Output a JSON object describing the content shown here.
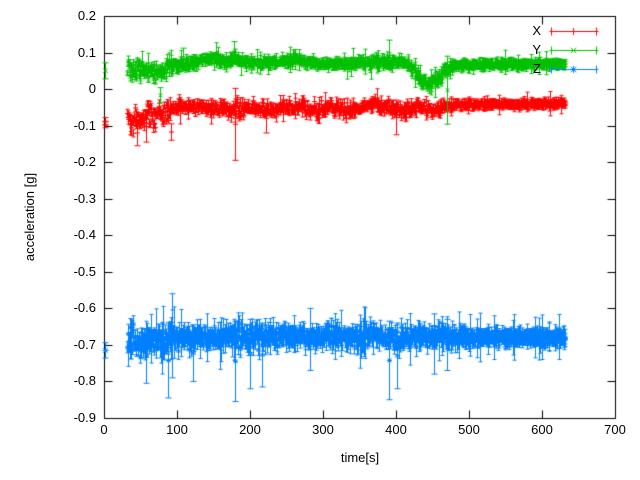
{
  "chart_data": {
    "type": "scatter",
    "style": "points-with-errorbars",
    "title": "",
    "xlabel": "time[s]",
    "ylabel": "acceleration [g]",
    "xlim": [
      0,
      700
    ],
    "ylim": [
      -0.9,
      0.2
    ],
    "xtick_values": [
      0,
      100,
      200,
      300,
      400,
      500,
      600,
      700
    ],
    "xticks": [
      "0",
      "100",
      "200",
      "300",
      "400",
      "500",
      "600",
      "700"
    ],
    "ytick_values": [
      0.2,
      0.1,
      0,
      -0.1,
      -0.2,
      -0.3,
      -0.4,
      -0.5,
      -0.6,
      -0.7,
      -0.8,
      -0.9
    ],
    "yticks": [
      "0.2",
      "0.1",
      "0",
      "-0.1",
      "-0.2",
      "-0.3",
      "-0.4",
      "-0.5",
      "-0.6",
      "-0.7",
      "-0.8",
      "-0.9"
    ],
    "grid": false,
    "background": "#ffffff",
    "axis_color": "#000000",
    "legend_position": "top-right-inside",
    "t_start": 32,
    "t_end": 632,
    "series": [
      {
        "name": "X",
        "color": "#ff0000",
        "marker": "plus",
        "mean_level": -0.05,
        "initial_points": [
          {
            "t": 1,
            "v": -0.088,
            "err": 0.01
          },
          {
            "t": 1,
            "v": -0.098,
            "err": 0.008
          }
        ],
        "band": [
          [
            32,
            -0.08,
            0.05
          ],
          [
            45,
            -0.088,
            0.055
          ],
          [
            60,
            -0.065,
            0.04
          ],
          [
            77,
            -0.078,
            0.048
          ],
          [
            92,
            -0.055,
            0.03
          ],
          [
            112,
            -0.05,
            0.022
          ],
          [
            135,
            -0.048,
            0.022
          ],
          [
            160,
            -0.055,
            0.03
          ],
          [
            180,
            -0.058,
            0.038
          ],
          [
            200,
            -0.048,
            0.024
          ],
          [
            222,
            -0.06,
            0.032
          ],
          [
            248,
            -0.048,
            0.022
          ],
          [
            270,
            -0.05,
            0.025
          ],
          [
            292,
            -0.058,
            0.032
          ],
          [
            312,
            -0.048,
            0.026
          ],
          [
            332,
            -0.06,
            0.032
          ],
          [
            352,
            -0.048,
            0.02
          ],
          [
            372,
            -0.04,
            0.024
          ],
          [
            396,
            -0.056,
            0.034
          ],
          [
            414,
            -0.06,
            0.034
          ],
          [
            432,
            -0.05,
            0.024
          ],
          [
            452,
            -0.058,
            0.028
          ],
          [
            470,
            -0.046,
            0.018
          ],
          [
            505,
            -0.043,
            0.013
          ],
          [
            560,
            -0.041,
            0.011
          ],
          [
            632,
            -0.04,
            0.01
          ]
        ],
        "outlier_bars": [
          [
            45,
            -0.155,
            -0.085
          ],
          [
            57,
            -0.145,
            -0.06
          ],
          [
            92,
            -0.14,
            -0.095
          ],
          [
            180,
            -0.195,
            0.002
          ],
          [
            222,
            -0.12,
            -0.04
          ],
          [
            400,
            -0.125,
            -0.03
          ]
        ],
        "err_base": 0.006,
        "err_rand": 0.008,
        "err_big_p": 0.05
      },
      {
        "name": "Y",
        "color": "#00c000",
        "marker": "cross",
        "mean_level": 0.07,
        "initial_points": [
          {
            "t": 1,
            "v": 0.05,
            "err": 0.022
          }
        ],
        "band": [
          [
            32,
            0.05,
            0.045
          ],
          [
            45,
            0.055,
            0.04
          ],
          [
            60,
            0.05,
            0.04
          ],
          [
            77,
            0.045,
            0.045
          ],
          [
            92,
            0.065,
            0.028
          ],
          [
            112,
            0.07,
            0.022
          ],
          [
            130,
            0.078,
            0.022
          ],
          [
            150,
            0.085,
            0.02
          ],
          [
            165,
            0.075,
            0.02
          ],
          [
            178,
            0.088,
            0.022
          ],
          [
            195,
            0.07,
            0.018
          ],
          [
            230,
            0.072,
            0.02
          ],
          [
            268,
            0.079,
            0.018
          ],
          [
            288,
            0.07,
            0.018
          ],
          [
            330,
            0.068,
            0.02
          ],
          [
            372,
            0.074,
            0.022
          ],
          [
            415,
            0.072,
            0.02
          ],
          [
            428,
            0.045,
            0.032
          ],
          [
            443,
            0.012,
            0.028
          ],
          [
            458,
            0.03,
            0.032
          ],
          [
            472,
            0.06,
            0.02
          ],
          [
            490,
            0.066,
            0.014
          ],
          [
            540,
            0.068,
            0.012
          ],
          [
            632,
            0.068,
            0.01
          ]
        ],
        "outlier_bars": [
          [
            77,
            -0.038,
            0.004
          ],
          [
            108,
            0.06,
            0.112
          ],
          [
            178,
            0.068,
            0.13
          ],
          [
            390,
            0.058,
            0.134
          ],
          [
            470,
            -0.096,
            0.09
          ]
        ],
        "err_base": 0.006,
        "err_rand": 0.008,
        "err_big_p": 0.05
      },
      {
        "name": "Z",
        "color": "#0080ff",
        "marker": "star",
        "mean_level": -0.68,
        "initial_points": [
          {
            "t": 1,
            "v": -0.715,
            "err": 0.021
          }
        ],
        "band": [
          [
            32,
            -0.688,
            0.055
          ],
          [
            60,
            -0.69,
            0.058
          ],
          [
            95,
            -0.682,
            0.045
          ],
          [
            130,
            -0.678,
            0.032
          ],
          [
            148,
            -0.678,
            0.018
          ],
          [
            165,
            -0.68,
            0.035
          ],
          [
            185,
            -0.678,
            0.048
          ],
          [
            215,
            -0.676,
            0.045
          ],
          [
            245,
            -0.678,
            0.035
          ],
          [
            270,
            -0.68,
            0.028
          ],
          [
            295,
            -0.678,
            0.032
          ],
          [
            315,
            -0.676,
            0.038
          ],
          [
            345,
            -0.68,
            0.03
          ],
          [
            370,
            -0.677,
            0.034
          ],
          [
            398,
            -0.68,
            0.04
          ],
          [
            420,
            -0.68,
            0.03
          ],
          [
            445,
            -0.676,
            0.034
          ],
          [
            470,
            -0.679,
            0.026
          ],
          [
            500,
            -0.68,
            0.02
          ],
          [
            535,
            -0.68,
            0.014
          ],
          [
            575,
            -0.68,
            0.01
          ],
          [
            632,
            -0.681,
            0.008
          ]
        ],
        "outlier_bars": [
          [
            58,
            -0.805,
            -0.655
          ],
          [
            88,
            -0.845,
            -0.64
          ],
          [
            93,
            -0.79,
            -0.56
          ],
          [
            122,
            -0.8,
            -0.645
          ],
          [
            180,
            -0.855,
            -0.635
          ],
          [
            200,
            -0.82,
            -0.63
          ],
          [
            216,
            -0.815,
            -0.64
          ],
          [
            282,
            -0.77,
            -0.6
          ],
          [
            390,
            -0.85,
            -0.635
          ],
          [
            402,
            -0.82,
            -0.64
          ],
          [
            452,
            -0.78,
            -0.615
          ],
          [
            470,
            -0.77,
            -0.63
          ]
        ],
        "err_base": 0.012,
        "err_rand": 0.016,
        "err_big_p": 0.08
      }
    ]
  }
}
